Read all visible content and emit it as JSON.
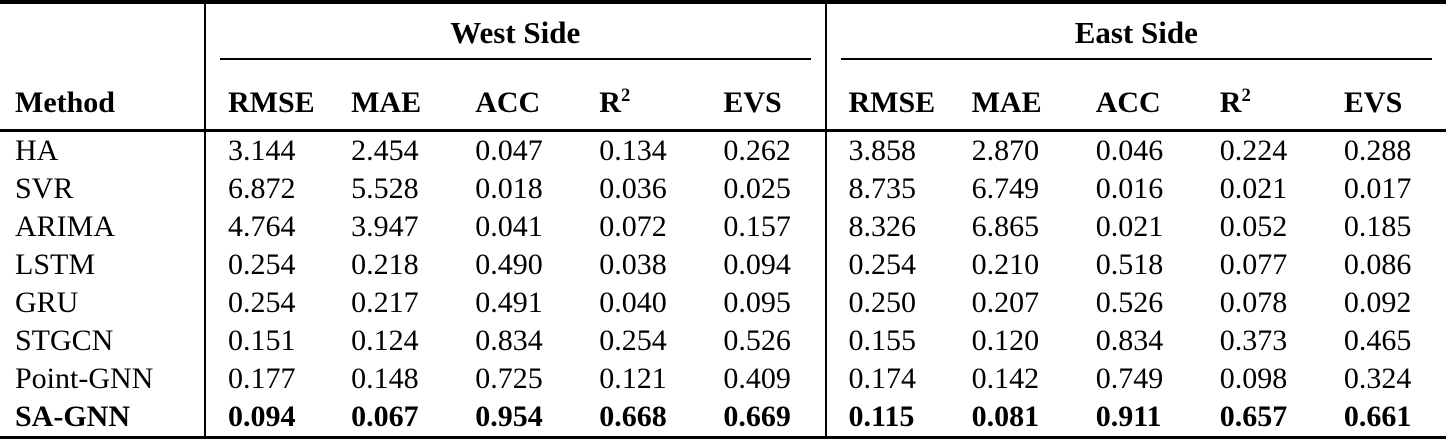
{
  "table": {
    "method_header": "Method",
    "groups": [
      {
        "label": "West Side",
        "columns": [
          {
            "label": "RMSE",
            "sup": ""
          },
          {
            "label": "MAE",
            "sup": ""
          },
          {
            "label": "ACC",
            "sup": ""
          },
          {
            "label": "R",
            "sup": "2"
          },
          {
            "label": "EVS",
            "sup": ""
          }
        ]
      },
      {
        "label": "East Side",
        "columns": [
          {
            "label": "RMSE",
            "sup": ""
          },
          {
            "label": "MAE",
            "sup": ""
          },
          {
            "label": "ACC",
            "sup": ""
          },
          {
            "label": "R",
            "sup": "2"
          },
          {
            "label": "EVS",
            "sup": ""
          }
        ]
      }
    ],
    "rows": [
      {
        "method": "HA",
        "bold": false,
        "west": [
          "3.144",
          "2.454",
          "0.047",
          "0.134",
          "0.262"
        ],
        "east": [
          "3.858",
          "2.870",
          "0.046",
          "0.224",
          "0.288"
        ]
      },
      {
        "method": "SVR",
        "bold": false,
        "west": [
          "6.872",
          "5.528",
          "0.018",
          "0.036",
          "0.025"
        ],
        "east": [
          "8.735",
          "6.749",
          "0.016",
          "0.021",
          "0.017"
        ]
      },
      {
        "method": "ARIMA",
        "bold": false,
        "west": [
          "4.764",
          "3.947",
          "0.041",
          "0.072",
          "0.157"
        ],
        "east": [
          "8.326",
          "6.865",
          "0.021",
          "0.052",
          "0.185"
        ]
      },
      {
        "method": "LSTM",
        "bold": false,
        "west": [
          "0.254",
          "0.218",
          "0.490",
          "0.038",
          "0.094"
        ],
        "east": [
          "0.254",
          "0.210",
          "0.518",
          "0.077",
          "0.086"
        ]
      },
      {
        "method": "GRU",
        "bold": false,
        "west": [
          "0.254",
          "0.217",
          "0.491",
          "0.040",
          "0.095"
        ],
        "east": [
          "0.250",
          "0.207",
          "0.526",
          "0.078",
          "0.092"
        ]
      },
      {
        "method": "STGCN",
        "bold": false,
        "west": [
          "0.151",
          "0.124",
          "0.834",
          "0.254",
          "0.526"
        ],
        "east": [
          "0.155",
          "0.120",
          "0.834",
          "0.373",
          "0.465"
        ]
      },
      {
        "method": "Point-GNN",
        "bold": false,
        "west": [
          "0.177",
          "0.148",
          "0.725",
          "0.121",
          "0.409"
        ],
        "east": [
          "0.174",
          "0.142",
          "0.749",
          "0.098",
          "0.324"
        ]
      },
      {
        "method": "SA-GNN",
        "bold": true,
        "west": [
          "0.094",
          "0.067",
          "0.954",
          "0.668",
          "0.669"
        ],
        "east": [
          "0.115",
          "0.081",
          "0.911",
          "0.657",
          "0.661"
        ]
      }
    ],
    "colors": {
      "text": "#000000",
      "rule": "#000000",
      "background": "#ffffff"
    }
  }
}
